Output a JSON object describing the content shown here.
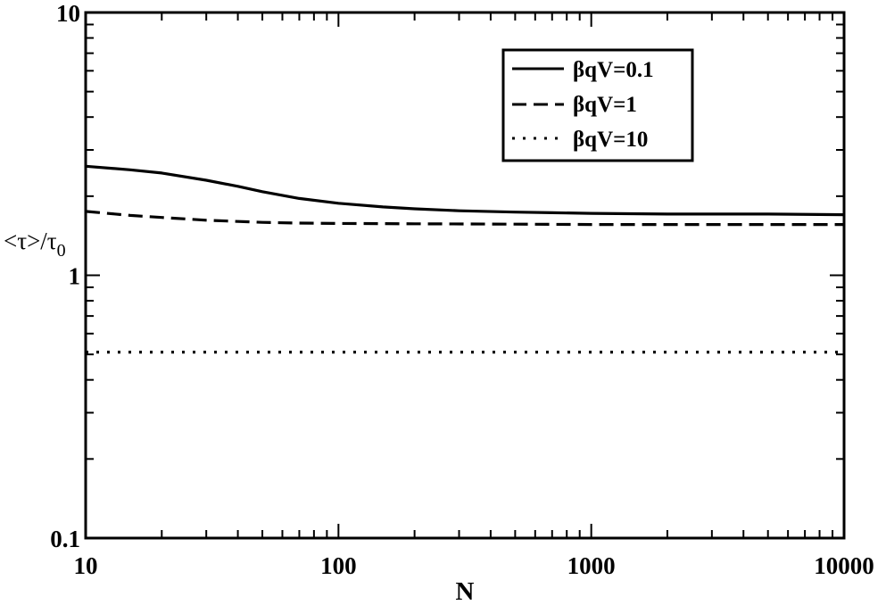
{
  "chart_data": {
    "type": "line",
    "xlabel": "N",
    "ylabel": {
      "main": "<τ>/τ",
      "sub": "0"
    },
    "xscale": "log",
    "yscale": "log",
    "xlim": [
      10,
      10000
    ],
    "ylim": [
      0.1,
      10
    ],
    "xticks": [
      {
        "value": 10,
        "label": "10"
      },
      {
        "value": 100,
        "label": "100"
      },
      {
        "value": 1000,
        "label": "1000"
      },
      {
        "value": 10000,
        "label": "10000"
      }
    ],
    "yticks": [
      {
        "value": 0.1,
        "label": "0.1"
      },
      {
        "value": 1,
        "label": "1"
      },
      {
        "value": 10,
        "label": "10"
      }
    ],
    "grid": false,
    "legend_position": "top-right",
    "series": [
      {
        "name": "βqV=0.1",
        "style": "solid",
        "x": [
          10,
          15,
          20,
          30,
          40,
          50,
          70,
          100,
          150,
          200,
          300,
          500,
          700,
          1000,
          2000,
          5000,
          10000
        ],
        "y": [
          2.6,
          2.52,
          2.45,
          2.3,
          2.18,
          2.08,
          1.96,
          1.88,
          1.82,
          1.79,
          1.76,
          1.74,
          1.73,
          1.72,
          1.71,
          1.71,
          1.7
        ]
      },
      {
        "name": "βqV=1",
        "style": "dashed",
        "x": [
          10,
          15,
          20,
          30,
          50,
          70,
          100,
          200,
          500,
          1000,
          3000,
          10000
        ],
        "y": [
          1.75,
          1.69,
          1.66,
          1.62,
          1.59,
          1.58,
          1.575,
          1.57,
          1.565,
          1.56,
          1.56,
          1.56
        ]
      },
      {
        "name": "βqV=10",
        "style": "dotted",
        "x": [
          10,
          100,
          1000,
          10000
        ],
        "y": [
          0.51,
          0.51,
          0.51,
          0.51
        ]
      }
    ]
  }
}
